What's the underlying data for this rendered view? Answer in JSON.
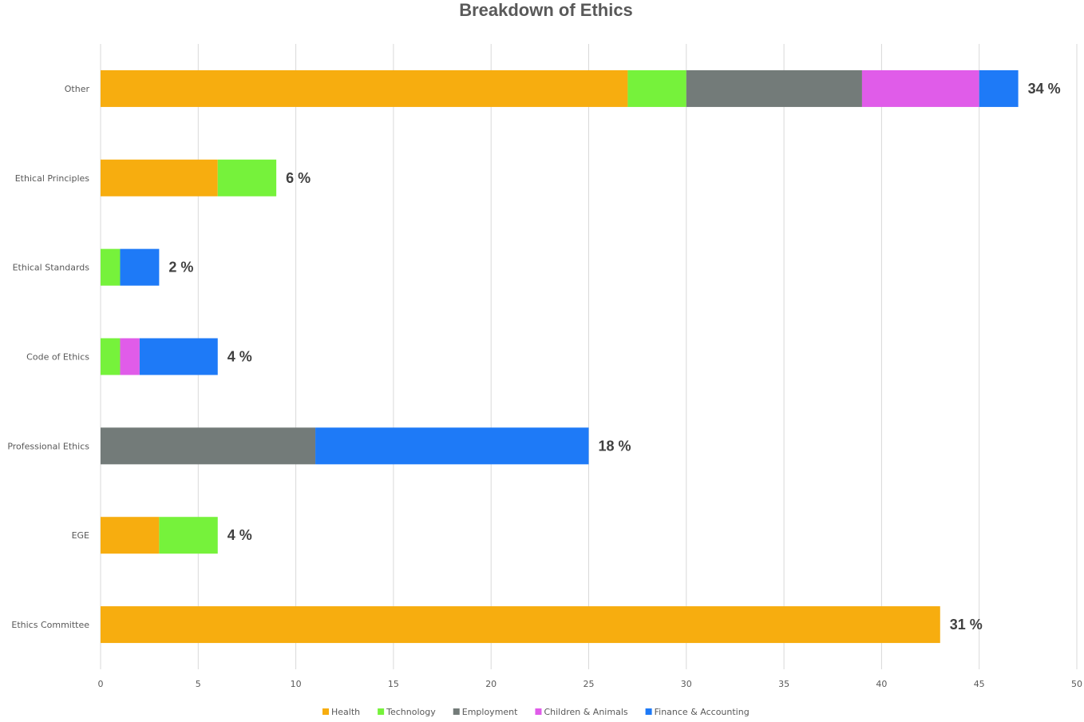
{
  "chart_data": {
    "type": "bar",
    "orientation": "horizontal",
    "stacked": true,
    "title": "Breakdown of Ethics",
    "categories": [
      "Other",
      "Ethical Principles",
      "Ethical Standards",
      "Code of Ethics",
      "Professional Ethics",
      "EGE",
      "Ethics Committee"
    ],
    "series": [
      {
        "name": "Health",
        "color": "#f7ad0f",
        "values": [
          27,
          6,
          0,
          0,
          0,
          3,
          43
        ]
      },
      {
        "name": "Technology",
        "color": "#76f23b",
        "values": [
          3,
          3,
          1,
          1,
          0,
          3,
          0
        ]
      },
      {
        "name": "Employment",
        "color": "#737b79",
        "values": [
          9,
          0,
          0,
          0,
          11,
          0,
          0
        ]
      },
      {
        "name": "Children & Animals",
        "color": "#e05ce9",
        "values": [
          6,
          0,
          0,
          1,
          0,
          0,
          0
        ]
      },
      {
        "name": "Finance & Accounting",
        "color": "#1e7af7",
        "values": [
          2,
          0,
          2,
          4,
          14,
          0,
          0
        ]
      }
    ],
    "data_labels": [
      "34 %",
      "6 %",
      "2 %",
      "4 %",
      "18 %",
      "4 %",
      "31 %"
    ],
    "xlim": [
      0,
      50
    ],
    "x_ticks": [
      0,
      5,
      10,
      15,
      20,
      25,
      30,
      35,
      40,
      45,
      50
    ],
    "grid": true,
    "legend_position": "bottom"
  }
}
